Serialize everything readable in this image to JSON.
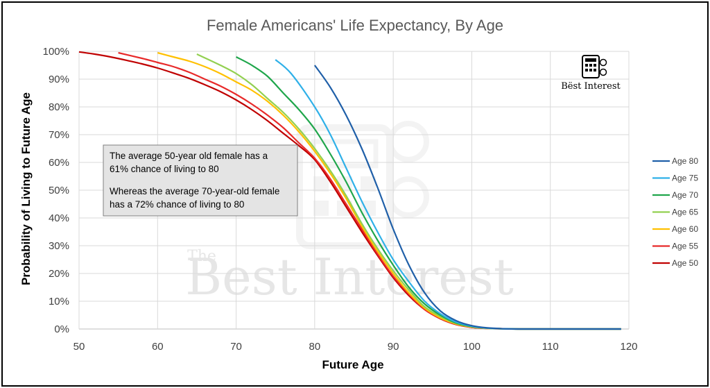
{
  "chart_data": {
    "type": "line",
    "title": "Female Americans' Life Expectancy, By Age",
    "xlabel": "Future Age",
    "ylabel": "Probability of Living to Future Age",
    "xlim": [
      50,
      120
    ],
    "ylim": [
      0,
      100
    ],
    "x_ticks": [
      "50",
      "60",
      "70",
      "80",
      "90",
      "100",
      "110",
      "120"
    ],
    "y_ticks": [
      "0%",
      "10%",
      "20%",
      "30%",
      "40%",
      "50%",
      "60%",
      "70%",
      "80%",
      "90%",
      "100%"
    ],
    "grid": true,
    "legend_position": "right",
    "series": [
      {
        "name": "Age 80",
        "color": "#1f5fa8",
        "start_age": 80,
        "x": [
          80,
          82,
          84,
          86,
          88,
          90,
          92,
          94,
          96,
          98,
          100,
          102,
          104,
          106,
          110,
          115,
          119
        ],
        "y": [
          95,
          87,
          77,
          65,
          51,
          36,
          23,
          13,
          6.5,
          3,
          1.2,
          0.4,
          0.1,
          0,
          0,
          0,
          0
        ]
      },
      {
        "name": "Age 75",
        "color": "#2fb0e8",
        "start_age": 75,
        "x": [
          75,
          77,
          80,
          82,
          84,
          86,
          88,
          90,
          92,
          94,
          96,
          98,
          100,
          102,
          104,
          106,
          110,
          115,
          119
        ],
        "y": [
          97,
          92,
          80,
          70,
          58,
          46,
          35,
          25,
          17,
          10,
          5.5,
          2.5,
          1,
          0.3,
          0.1,
          0,
          0,
          0,
          0
        ]
      },
      {
        "name": "Age 70",
        "color": "#1fa64b",
        "start_age": 70,
        "x": [
          70,
          72,
          74,
          76,
          78,
          80,
          82,
          84,
          86,
          88,
          90,
          92,
          94,
          96,
          98,
          100,
          102,
          104,
          106,
          110,
          115,
          119
        ],
        "y": [
          98,
          95,
          91,
          85,
          79,
          72,
          63,
          53,
          42,
          32,
          23,
          15,
          9,
          5,
          2.2,
          0.9,
          0.3,
          0.1,
          0,
          0,
          0,
          0
        ]
      },
      {
        "name": "Age 65",
        "color": "#92d050",
        "start_age": 65,
        "x": [
          65,
          68,
          70,
          72,
          74,
          76,
          78,
          80,
          82,
          84,
          86,
          88,
          90,
          92,
          94,
          96,
          98,
          100,
          102,
          104,
          106,
          110,
          115,
          119
        ],
        "y": [
          99,
          95,
          92,
          88,
          83,
          78,
          72,
          65,
          57,
          48,
          38,
          29,
          21,
          14,
          8,
          4.5,
          2,
          0.8,
          0.3,
          0.1,
          0,
          0,
          0,
          0
        ]
      },
      {
        "name": "Age 60",
        "color": "#ffc000",
        "start_age": 60,
        "x": [
          60,
          62,
          64,
          66,
          68,
          70,
          72,
          74,
          76,
          78,
          80,
          82,
          84,
          86,
          88,
          90,
          92,
          94,
          96,
          98,
          100,
          102,
          104,
          106,
          110,
          115,
          119
        ],
        "y": [
          99.5,
          98,
          96.5,
          94.5,
          92,
          89,
          86,
          82,
          77,
          71,
          64,
          56,
          47,
          37,
          28,
          20,
          13,
          7.5,
          4,
          1.8,
          0.7,
          0.2,
          0.1,
          0,
          0,
          0,
          0
        ]
      },
      {
        "name": "Age 55",
        "color": "#e82a2a",
        "start_age": 55,
        "x": [
          55,
          58,
          60,
          62,
          64,
          66,
          68,
          70,
          72,
          74,
          76,
          78,
          80,
          82,
          84,
          86,
          88,
          90,
          92,
          94,
          96,
          98,
          100,
          102,
          104,
          106,
          110,
          115,
          119
        ],
        "y": [
          99.5,
          97.5,
          96,
          94.5,
          92.5,
          90,
          87.5,
          84.5,
          81,
          77,
          72.5,
          67,
          61.5,
          54,
          45,
          36,
          27,
          19,
          12.5,
          7,
          3.8,
          1.7,
          0.6,
          0.2,
          0.1,
          0,
          0,
          0,
          0
        ]
      },
      {
        "name": "Age 50",
        "color": "#c00000",
        "start_age": 50,
        "x": [
          50,
          52,
          54,
          56,
          58,
          60,
          62,
          64,
          66,
          68,
          70,
          72,
          74,
          76,
          78,
          80,
          82,
          84,
          86,
          88,
          90,
          92,
          94,
          96,
          98,
          100,
          102,
          104,
          106,
          110,
          115,
          119
        ],
        "y": [
          99.8,
          99,
          98,
          96.8,
          95.5,
          94,
          92.2,
          90.3,
          88,
          85.5,
          82.5,
          79,
          75,
          70.5,
          66,
          61,
          53,
          44,
          35,
          26.5,
          18.5,
          12,
          7,
          3.7,
          1.6,
          0.6,
          0.2,
          0.1,
          0,
          0,
          0,
          0
        ]
      }
    ],
    "annotation": {
      "line1": "The average 50-year old female has a",
      "line2": "61% chance of living to 80",
      "line3": "Whereas the average 70-year-old female",
      "line4": "has a 72% chance of living to 80"
    },
    "watermark": {
      "small": "The",
      "large": "Best Interest"
    },
    "logo": {
      "text": "Bëst Interest"
    }
  }
}
